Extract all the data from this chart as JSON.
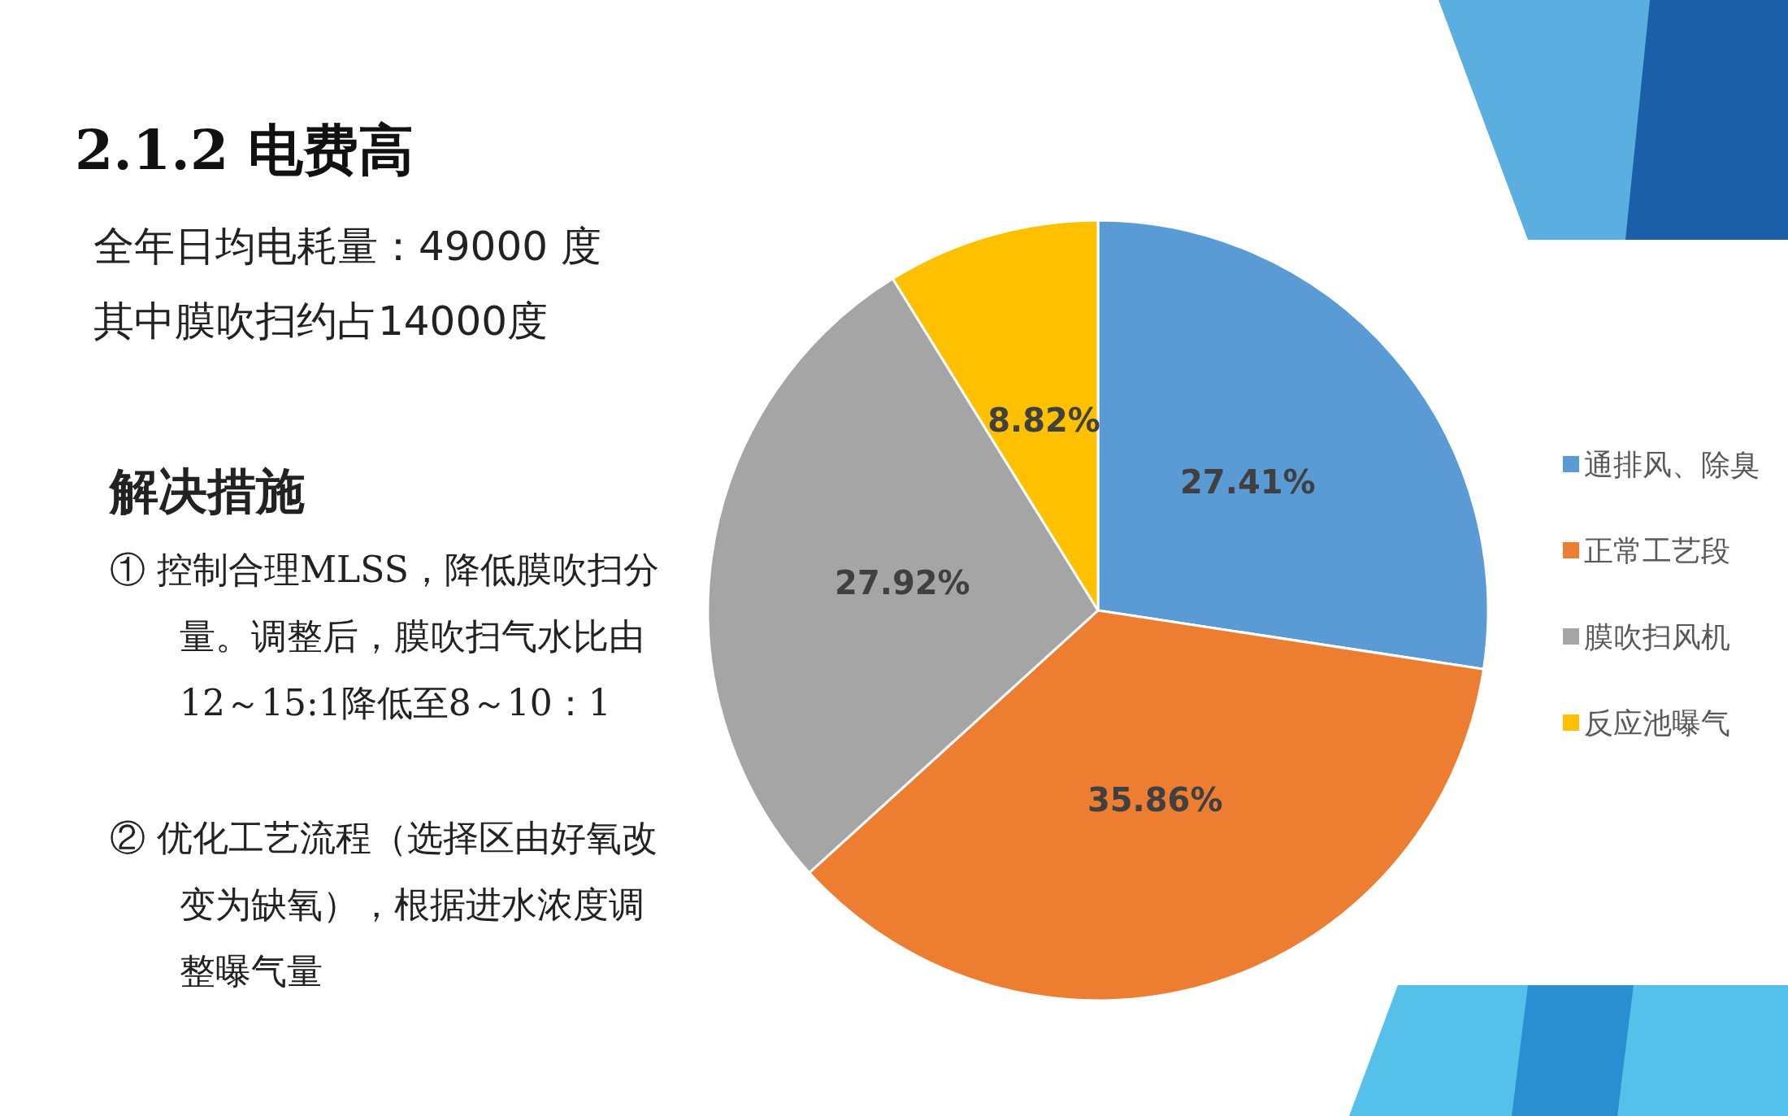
{
  "chart_data": {
    "type": "pie",
    "title": "2.1.2  电费高",
    "categories": [
      "通排风、除臭",
      "正常工艺段",
      "膜吹扫风机",
      "反应池曝气"
    ],
    "values": [
      27.41,
      35.86,
      27.92,
      8.82
    ],
    "colors": [
      "#5b9bd5",
      "#ed7d31",
      "#a5a5a5",
      "#ffc000"
    ],
    "value_labels": [
      "27.41%",
      "35.86%",
      "27.92%",
      "8.82%"
    ],
    "legend": "right",
    "annotations": [
      "全年日均电耗量：49000 度",
      "其中膜吹扫约占14000度",
      "解决措施",
      "① 控制合理MLSS，降低膜吹扫分量。调整后，膜吹扫气水比由12～15:1降低至8～10：1",
      "② 优化工艺流程（选择区由好氧改变为缺氧），根据进水浓度调整曝气量"
    ]
  }
}
